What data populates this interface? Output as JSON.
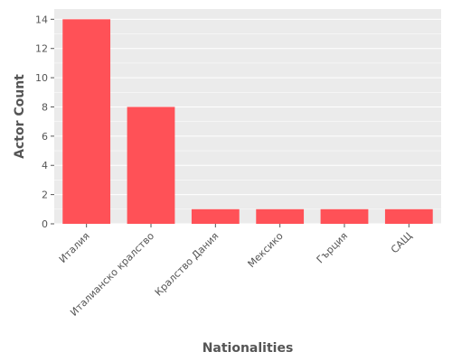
{
  "chart_data": {
    "type": "bar",
    "title": "",
    "xlabel": "Nationalities",
    "ylabel": "Actor Count",
    "categories": [
      "Италия",
      "Италианско кралство",
      "Кралство Дания",
      "Мексико",
      "Гърция",
      "САЩ"
    ],
    "values": [
      14,
      8,
      1,
      1,
      1,
      1
    ],
    "ylim": [
      0,
      14.7
    ],
    "yticks": [
      0,
      2,
      4,
      6,
      8,
      10,
      12,
      14
    ],
    "grid": true,
    "legend": "none",
    "bar_color": "#ff5157",
    "background_color": "#ebebeb",
    "grid_color": "#ffffff",
    "text_color": "#555555"
  }
}
